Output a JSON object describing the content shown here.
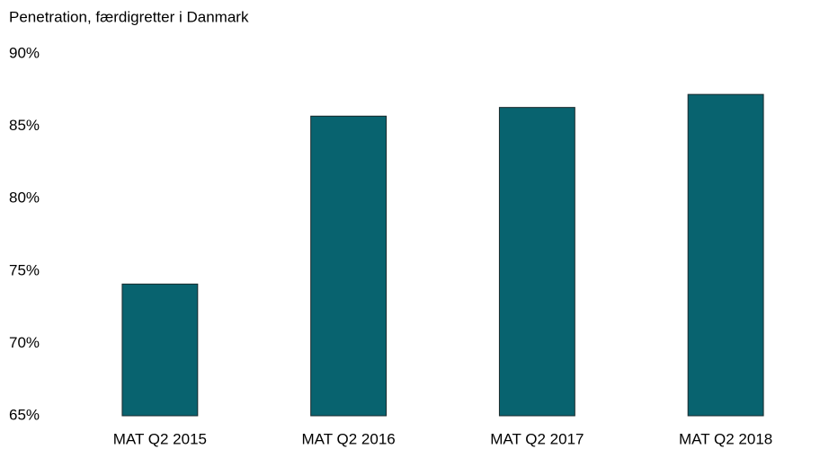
{
  "chart_data": {
    "type": "bar",
    "title": "Penetration, færdigretter i Danmark",
    "categories": [
      "MAT Q2 2015",
      "MAT Q2 2016",
      "MAT Q2 2017",
      "MAT Q2 2018"
    ],
    "values": [
      74.1,
      85.7,
      86.3,
      87.2
    ],
    "color": "#08636f",
    "ylim": [
      65,
      90
    ],
    "yticks": [
      {
        "value": 65,
        "label": "65%"
      },
      {
        "value": 70,
        "label": "70%"
      },
      {
        "value": 75,
        "label": "75%"
      },
      {
        "value": 80,
        "label": "80%"
      },
      {
        "value": 85,
        "label": "85%"
      },
      {
        "value": 90,
        "label": "90%"
      }
    ],
    "grid": false
  }
}
